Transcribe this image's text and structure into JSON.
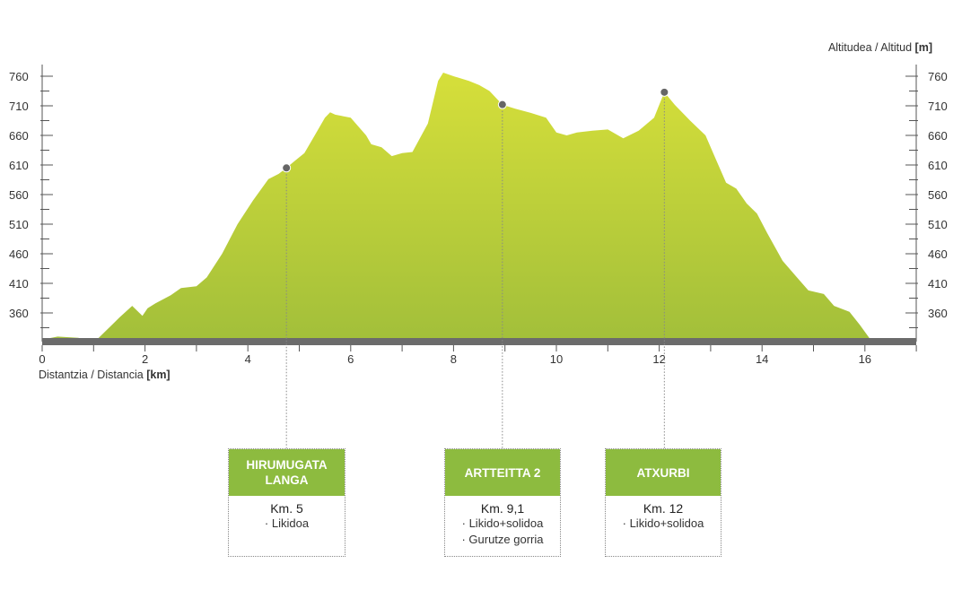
{
  "chart_data": {
    "type": "area",
    "xlabel": "Distantzia / Distancia",
    "xlabel_unit": "[km]",
    "ylabel": "Altitudea / Altitud",
    "ylabel_unit": "[m]",
    "xlim": [
      0,
      17
    ],
    "ylim": [
      310,
      780
    ],
    "x_ticks": [
      0,
      2,
      4,
      6,
      8,
      10,
      12,
      14,
      16
    ],
    "y_ticks": [
      360,
      410,
      460,
      510,
      560,
      610,
      660,
      710,
      760
    ],
    "fill_colors": [
      "#d6df3a",
      "#a2bf3a"
    ],
    "baseline_color": "#6b6b6b",
    "series": [
      {
        "x": [
          0,
          0.3,
          0.7,
          0.9,
          1.0,
          1.1,
          1.3,
          1.5,
          1.75,
          1.95,
          2.05,
          2.2,
          2.5,
          2.7,
          3.0,
          3.2,
          3.5,
          3.8,
          4.1,
          4.4,
          4.6,
          4.75,
          4.9,
          5.1,
          5.3,
          5.5,
          5.6,
          5.7,
          6.0,
          6.3,
          6.4,
          6.6,
          6.8,
          7.0,
          7.2,
          7.5,
          7.7,
          7.8,
          8.0,
          8.3,
          8.5,
          8.7,
          8.95,
          9.2,
          9.5,
          9.8,
          10.0,
          10.2,
          10.4,
          10.7,
          11.0,
          11.3,
          11.6,
          11.9,
          12.1,
          12.3,
          12.6,
          12.9,
          13.1,
          13.3,
          13.5,
          13.7,
          13.9,
          14.1,
          14.4,
          14.7,
          14.9,
          15.2,
          15.4,
          15.7,
          15.9,
          16.1,
          16.3,
          16.6,
          17.0
        ],
        "y": [
          315,
          320,
          318,
          314,
          310,
          318,
          335,
          352,
          372,
          355,
          368,
          376,
          390,
          402,
          405,
          420,
          460,
          510,
          550,
          586,
          595,
          605,
          616,
          630,
          660,
          690,
          699,
          695,
          690,
          660,
          645,
          640,
          625,
          630,
          632,
          680,
          752,
          766,
          760,
          752,
          745,
          735,
          712,
          705,
          698,
          690,
          665,
          660,
          665,
          668,
          670,
          655,
          668,
          690,
          733,
          712,
          685,
          660,
          620,
          580,
          570,
          545,
          528,
          495,
          448,
          418,
          398,
          392,
          372,
          362,
          340,
          316,
          310,
          310,
          310
        ]
      }
    ],
    "points": [
      {
        "km": 4.75,
        "altitude": 605
      },
      {
        "km": 8.95,
        "altitude": 712
      },
      {
        "km": 12.1,
        "altitude": 733
      }
    ]
  },
  "waypoints": [
    {
      "title": "HIRUMUGATA LANGA",
      "km": "Km. 5",
      "notes": [
        "· Likidoa"
      ]
    },
    {
      "title": "ARTTEITTA 2",
      "km": "Km. 9,1",
      "notes": [
        "· Likido+solidoa",
        "· Gurutze gorria"
      ]
    },
    {
      "title": "ATXURBI",
      "km": "Km. 12",
      "notes": [
        "· Likido+solidoa"
      ]
    }
  ]
}
